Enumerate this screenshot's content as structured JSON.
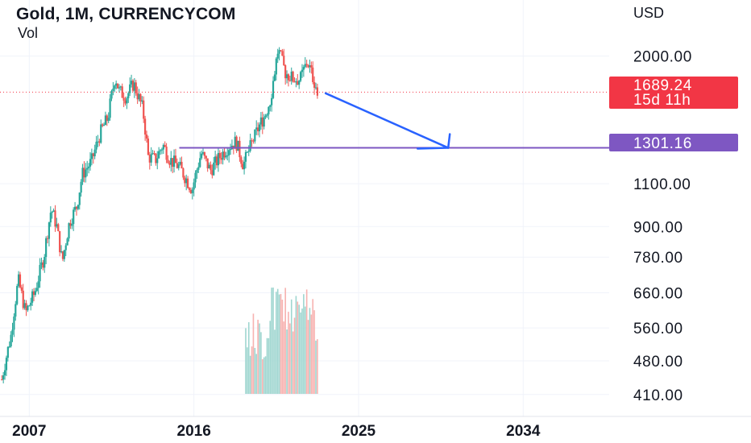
{
  "header": {
    "title": "Gold, 1M, CURRENCYCOM",
    "indicator": "Vol",
    "y_unit": "USD"
  },
  "colors": {
    "up": "#26a69a",
    "down": "#ef5350",
    "up_volume": "#9fd6d0",
    "down_volume": "#f7b2b0",
    "last_price": "#f23645",
    "support_line": "#7e57c2",
    "arrow": "#2962ff",
    "grid": "#f0f3fa",
    "text": "#131722"
  },
  "price_badge": {
    "value": "1689.24",
    "countdown": "15d 11h"
  },
  "level_badge": {
    "value": "1301.16"
  },
  "chart_data": {
    "type": "candlestick",
    "title": "Gold, 1M, CURRENCYCOM",
    "ylabel": "USD",
    "y_scale": "log",
    "ylim": [
      370,
      2600
    ],
    "xlim": [
      2005.4,
      2038.7
    ],
    "y_ticks": [
      "2000.00",
      "1100.00",
      "900.00",
      "780.00",
      "660.00",
      "560.00",
      "480.00",
      "410.00"
    ],
    "x_ticks": [
      "2007",
      "2016",
      "2025",
      "2034"
    ],
    "price_path": [
      [
        2005.5,
        440
      ],
      [
        2006.0,
        540
      ],
      [
        2006.4,
        700
      ],
      [
        2006.8,
        600
      ],
      [
        2007.3,
        660
      ],
      [
        2007.8,
        780
      ],
      [
        2008.2,
        980
      ],
      [
        2008.5,
        900
      ],
      [
        2008.8,
        760
      ],
      [
        2009.2,
        920
      ],
      [
        2009.6,
        990
      ],
      [
        2009.9,
        1150
      ],
      [
        2010.4,
        1220
      ],
      [
        2010.9,
        1400
      ],
      [
        2011.3,
        1500
      ],
      [
        2011.7,
        1820
      ],
      [
        2011.9,
        1700
      ],
      [
        2012.3,
        1650
      ],
      [
        2012.7,
        1760
      ],
      [
        2013.2,
        1560
      ],
      [
        2013.5,
        1250
      ],
      [
        2013.9,
        1230
      ],
      [
        2014.3,
        1320
      ],
      [
        2014.7,
        1230
      ],
      [
        2015.2,
        1190
      ],
      [
        2015.9,
        1070
      ],
      [
        2016.4,
        1270
      ],
      [
        2016.9,
        1170
      ],
      [
        2017.5,
        1260
      ],
      [
        2017.9,
        1310
      ],
      [
        2018.3,
        1340
      ],
      [
        2018.7,
        1200
      ],
      [
        2019.1,
        1310
      ],
      [
        2019.6,
        1450
      ],
      [
        2019.9,
        1520
      ],
      [
        2020.2,
        1640
      ],
      [
        2020.6,
        2060
      ],
      [
        2021.0,
        1850
      ],
      [
        2021.4,
        1800
      ],
      [
        2021.8,
        1790
      ],
      [
        2022.2,
        1950
      ],
      [
        2022.5,
        1810
      ],
      [
        2022.75,
        1700
      ]
    ],
    "last_price": 1689.24,
    "countdown": "15d 11h",
    "levels": [
      {
        "name": "support",
        "value": 1301.16,
        "from_x": 2015.2
      }
    ],
    "arrow": {
      "from": [
        2023.2,
        1680
      ],
      "to": [
        2029.9,
        1301.16
      ]
    }
  }
}
